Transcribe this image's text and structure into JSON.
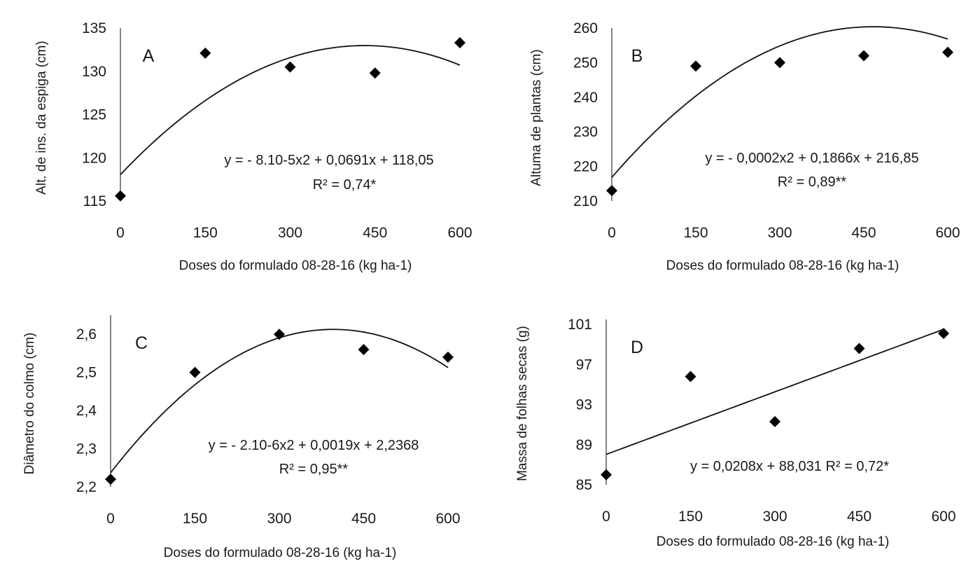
{
  "figure": {
    "background": "#ffffff",
    "marker_color": "#000000",
    "line_color": "#111111"
  },
  "chart_data": [
    {
      "type": "scatter",
      "label": "A",
      "xlabel": "Doses do formulado 08-28-16 (kg ha-1)",
      "ylabel": "Alt. de ins. da espiga (cm)",
      "x_ticks": [
        "0",
        "150",
        "300",
        "450",
        "600"
      ],
      "y_ticks": [
        "115",
        "120",
        "125",
        "130",
        "135"
      ],
      "xlim": [
        0,
        600
      ],
      "ylim": [
        115,
        135
      ],
      "points": {
        "x": [
          0,
          150,
          300,
          450,
          600
        ],
        "y": [
          115.6,
          132.1,
          130.5,
          129.8,
          133.3
        ]
      },
      "fit": {
        "type": "quadratic",
        "a": -8e-05,
        "b": 0.0691,
        "c": 118.05
      },
      "equation_text": "y = - 8.10-5x2 + 0,0691x + 118,05",
      "r2_text": "R² = 0,74*",
      "grid": false,
      "legend": "none"
    },
    {
      "type": "scatter",
      "label": "B",
      "xlabel": "Doses do formulado 08-28-16 (kg ha-1)",
      "ylabel": "Altuma de plantas (cm)",
      "x_ticks": [
        "0",
        "150",
        "300",
        "450",
        "600"
      ],
      "y_ticks": [
        "210",
        "220",
        "230",
        "240",
        "250",
        "260"
      ],
      "xlim": [
        0,
        600
      ],
      "ylim": [
        210,
        260
      ],
      "points": {
        "x": [
          0,
          150,
          300,
          450,
          600
        ],
        "y": [
          213,
          249,
          250,
          252,
          253
        ]
      },
      "fit": {
        "type": "quadratic",
        "a": -0.0002,
        "b": 0.1866,
        "c": 216.85
      },
      "equation_text": "y = - 0,0002x2 + 0,1866x + 216,85",
      "r2_text": "R² = 0,89**",
      "grid": false,
      "legend": "none"
    },
    {
      "type": "scatter",
      "label": "C",
      "xlabel": "Doses do formulado 08-28-16 (kg ha-1)",
      "ylabel": "Diâmetro do colmo (cm)",
      "x_ticks": [
        "0",
        "150",
        "300",
        "450",
        "600"
      ],
      "y_ticks": [
        "2,2",
        "2,3",
        "2,4",
        "2,5",
        "2,6"
      ],
      "xlim": [
        0,
        600
      ],
      "ylim": [
        2.2,
        2.65
      ],
      "points": {
        "x": [
          0,
          150,
          300,
          450,
          600
        ],
        "y": [
          2.22,
          2.5,
          2.6,
          2.56,
          2.54
        ]
      },
      "fit": {
        "type": "quadratic",
        "a": -2.4e-06,
        "b": 0.0019,
        "c": 2.2368
      },
      "equation_text": "y = - 2.10-6x2 + 0,0019x + 2,2368",
      "r2_text": "R² = 0,95**",
      "grid": false,
      "legend": "none"
    },
    {
      "type": "scatter",
      "label": "D",
      "xlabel": "Doses do formulado 08-28-16 (kg ha-1)",
      "ylabel": "Massa de folhas secas (g)",
      "x_ticks": [
        "0",
        "150",
        "300",
        "450",
        "600"
      ],
      "y_ticks": [
        "85",
        "89",
        "93",
        "97",
        "101"
      ],
      "xlim": [
        0,
        600
      ],
      "ylim": [
        85,
        101.5
      ],
      "points": {
        "x": [
          0,
          150,
          300,
          450,
          600
        ],
        "y": [
          86,
          95.8,
          91.3,
          98.6,
          100.1
        ]
      },
      "fit": {
        "type": "linear",
        "a": 0,
        "b": 0.0208,
        "c": 88.031
      },
      "equation_text": "y = 0,0208x + 88,031 R² = 0,72*",
      "r2_text": "",
      "grid": false,
      "legend": "none"
    }
  ]
}
